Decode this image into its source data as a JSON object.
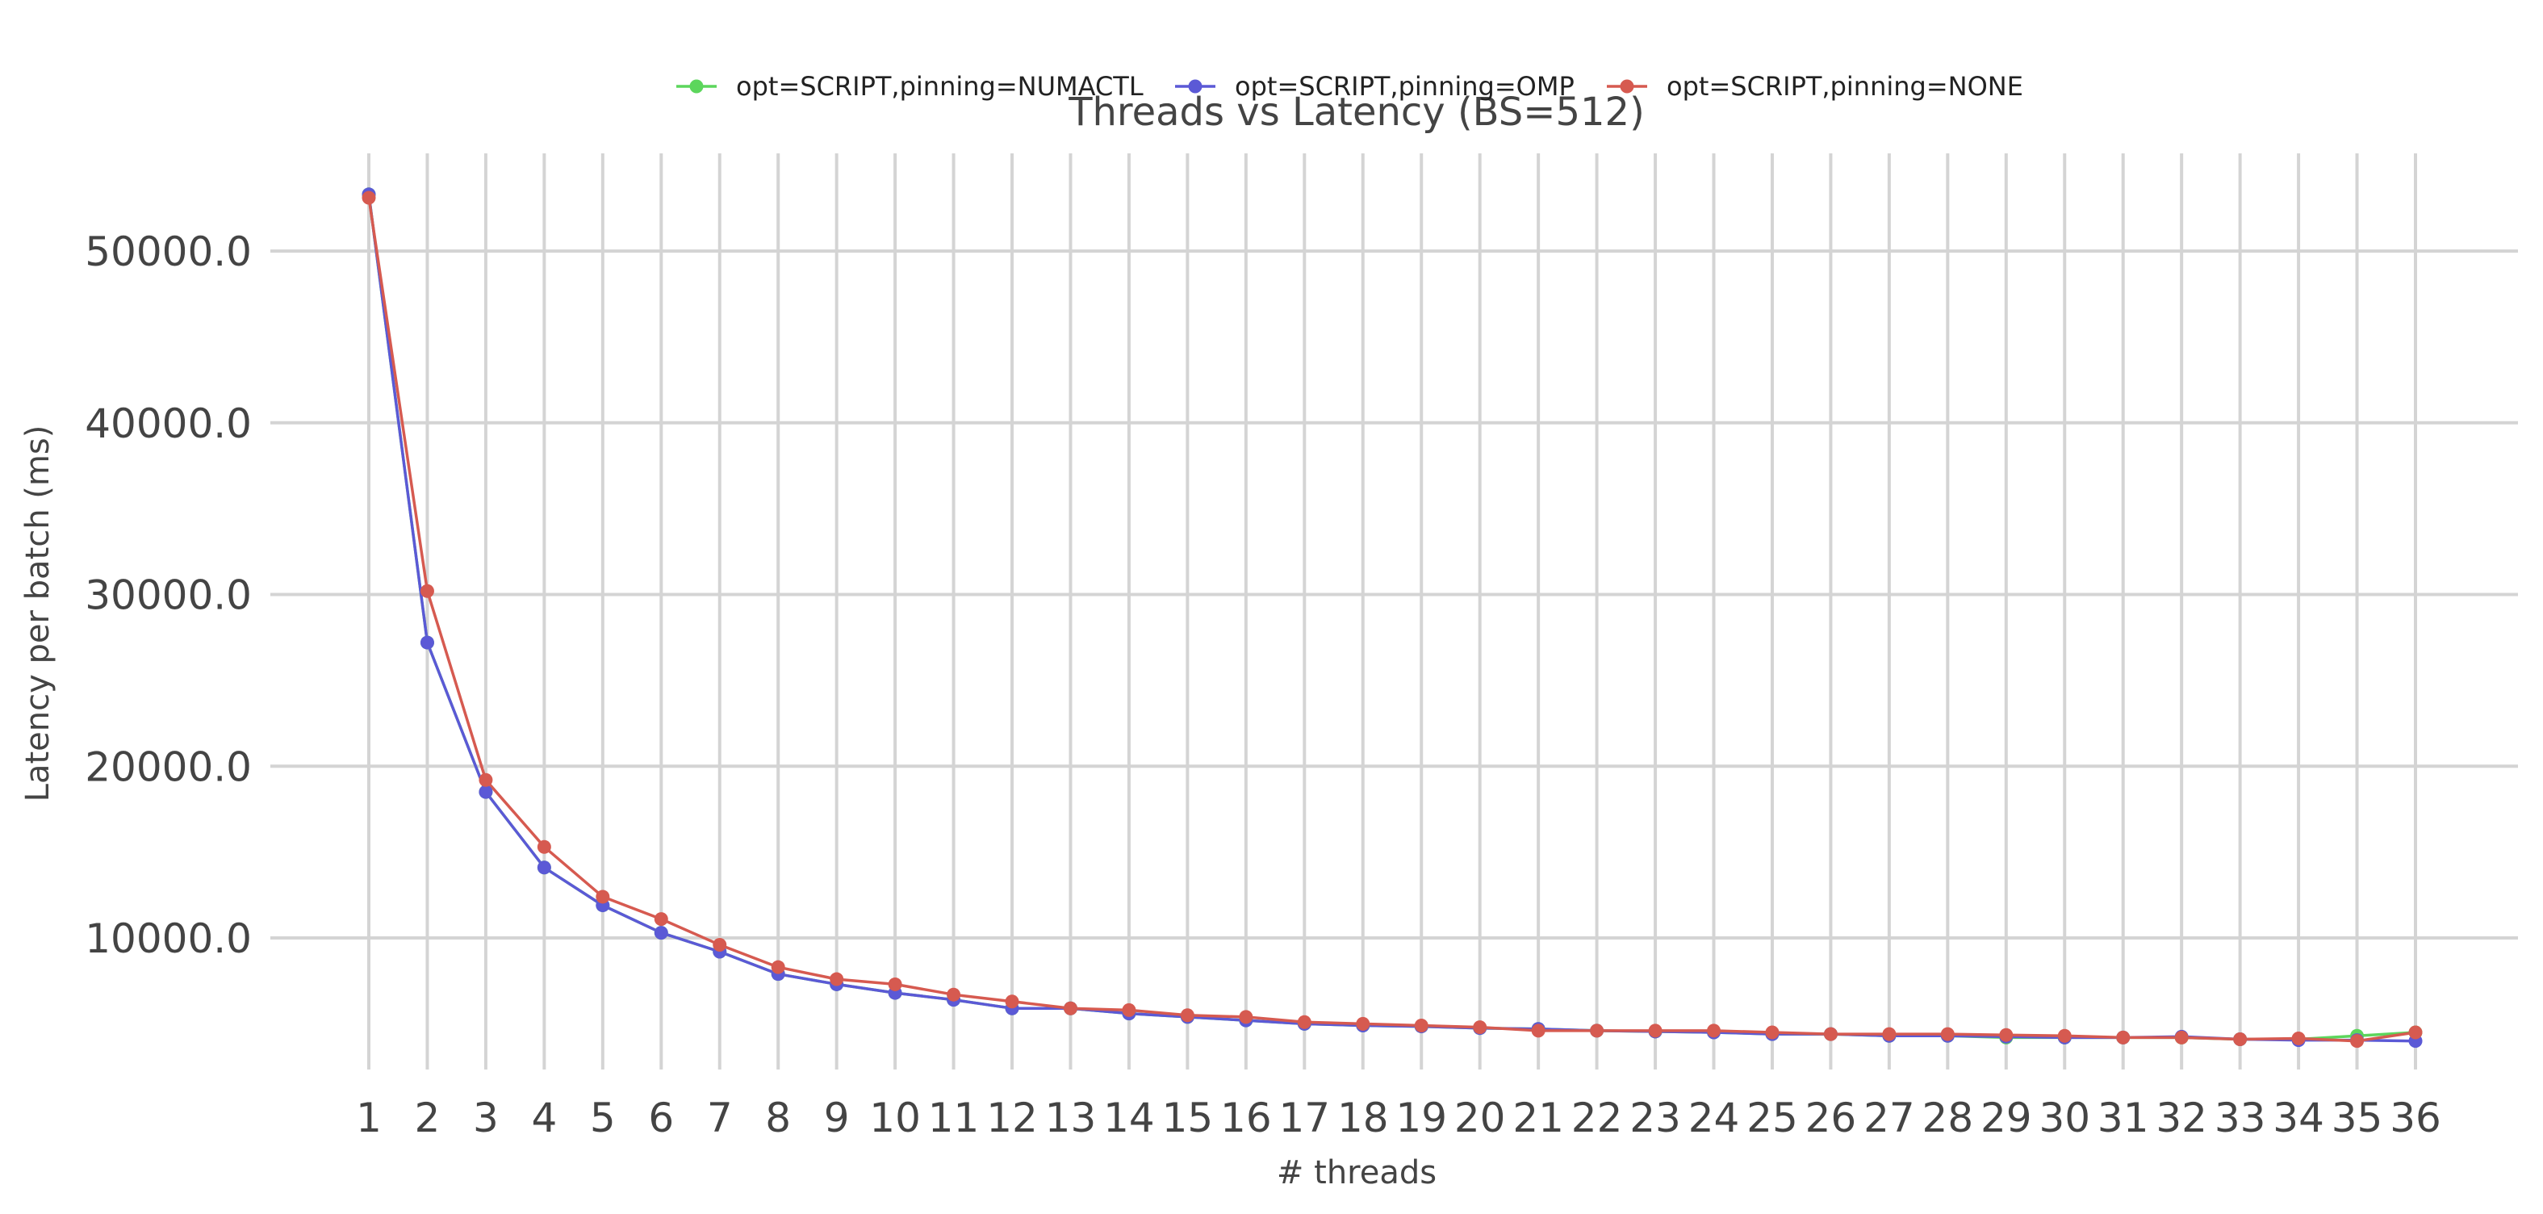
{
  "chart_data": {
    "type": "line",
    "title": "Threads vs Latency (BS=512)",
    "xlabel": "# threads",
    "ylabel": "Latency per batch (ms)",
    "x": [
      1,
      2,
      3,
      4,
      5,
      6,
      7,
      8,
      9,
      10,
      11,
      12,
      13,
      14,
      15,
      16,
      17,
      18,
      19,
      20,
      21,
      22,
      23,
      24,
      25,
      26,
      27,
      28,
      29,
      30,
      31,
      32,
      33,
      34,
      35,
      36
    ],
    "yticks": [
      "10000.0",
      "20000.0",
      "30000.0",
      "40000.0",
      "50000.0"
    ],
    "ylim": [
      3000,
      56000
    ],
    "grid": true,
    "legend_position": "top-center",
    "series": [
      {
        "name": "opt=SCRIPT,pinning=NUMACTL",
        "color": "#5cd65c",
        "values": [
          53300,
          27200,
          18500,
          14100,
          11900,
          10300,
          9200,
          7900,
          7300,
          6800,
          6400,
          5900,
          5900,
          5600,
          5400,
          5200,
          5000,
          4900,
          4850,
          4750,
          4700,
          4600,
          4550,
          4500,
          4400,
          4400,
          4300,
          4300,
          4200,
          4200,
          4200,
          4200,
          4100,
          4100,
          4300,
          4500
        ]
      },
      {
        "name": "opt=SCRIPT,pinning=OMP",
        "color": "#5b59d6",
        "values": [
          53300,
          27200,
          18500,
          14100,
          11900,
          10300,
          9200,
          7900,
          7300,
          6800,
          6400,
          5900,
          5900,
          5600,
          5400,
          5200,
          5000,
          4900,
          4850,
          4750,
          4700,
          4600,
          4550,
          4500,
          4400,
          4400,
          4300,
          4300,
          4250,
          4200,
          4200,
          4250,
          4100,
          4050,
          4050,
          4000
        ]
      },
      {
        "name": "opt=SCRIPT,pinning=NONE",
        "color": "#d65a50",
        "values": [
          53100,
          30200,
          19200,
          15300,
          12400,
          11100,
          9600,
          8300,
          7600,
          7300,
          6700,
          6300,
          5900,
          5800,
          5500,
          5400,
          5100,
          5000,
          4900,
          4800,
          4600,
          4600,
          4600,
          4600,
          4500,
          4400,
          4400,
          4400,
          4350,
          4300,
          4200,
          4200,
          4100,
          4150,
          4000,
          4500
        ]
      }
    ]
  }
}
